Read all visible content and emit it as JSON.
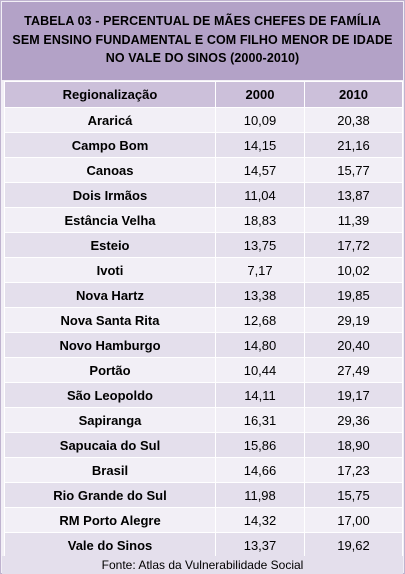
{
  "title": "TABELA  03 - PERCENTUAL  DE MÃES CHEFES DE FAMÍLIA SEM ENSINO  FUNDAMENTAL  E COM FILHO MENOR DE IDADE  NO VALE  DO SINOS (2000-2010)",
  "table": {
    "header": [
      "Regionalização",
      "2000",
      "2010"
    ],
    "rows": [
      [
        "Araricá",
        "10,09",
        "20,38"
      ],
      [
        "Campo Bom",
        "14,15",
        "21,16"
      ],
      [
        "Canoas",
        "14,57",
        "15,77"
      ],
      [
        "Dois Irmãos",
        "11,04",
        "13,87"
      ],
      [
        "Estância Velha",
        "18,83",
        "11,39"
      ],
      [
        "Esteio",
        "13,75",
        "17,72"
      ],
      [
        "Ivoti",
        "7,17",
        "10,02"
      ],
      [
        "Nova Hartz",
        "13,38",
        "19,85"
      ],
      [
        "Nova Santa Rita",
        "12,68",
        "29,19"
      ],
      [
        "Novo Hamburgo",
        "14,80",
        "20,40"
      ],
      [
        "Portão",
        "10,44",
        "27,49"
      ],
      [
        "São Leopoldo",
        "14,11",
        "19,17"
      ],
      [
        "Sapiranga",
        "16,31",
        "29,36"
      ],
      [
        "Sapucaia do Sul",
        "15,86",
        "18,90"
      ],
      [
        "Brasil",
        "14,66",
        "17,23"
      ],
      [
        "Rio Grande do Sul",
        "11,98",
        "15,75"
      ],
      [
        "RM Porto Alegre",
        "14,32",
        "17,00"
      ],
      [
        "Vale do Sinos",
        "13,37",
        "19,62"
      ]
    ]
  },
  "source": "Fonte: Atlas da Vulnerabilidade Social"
}
